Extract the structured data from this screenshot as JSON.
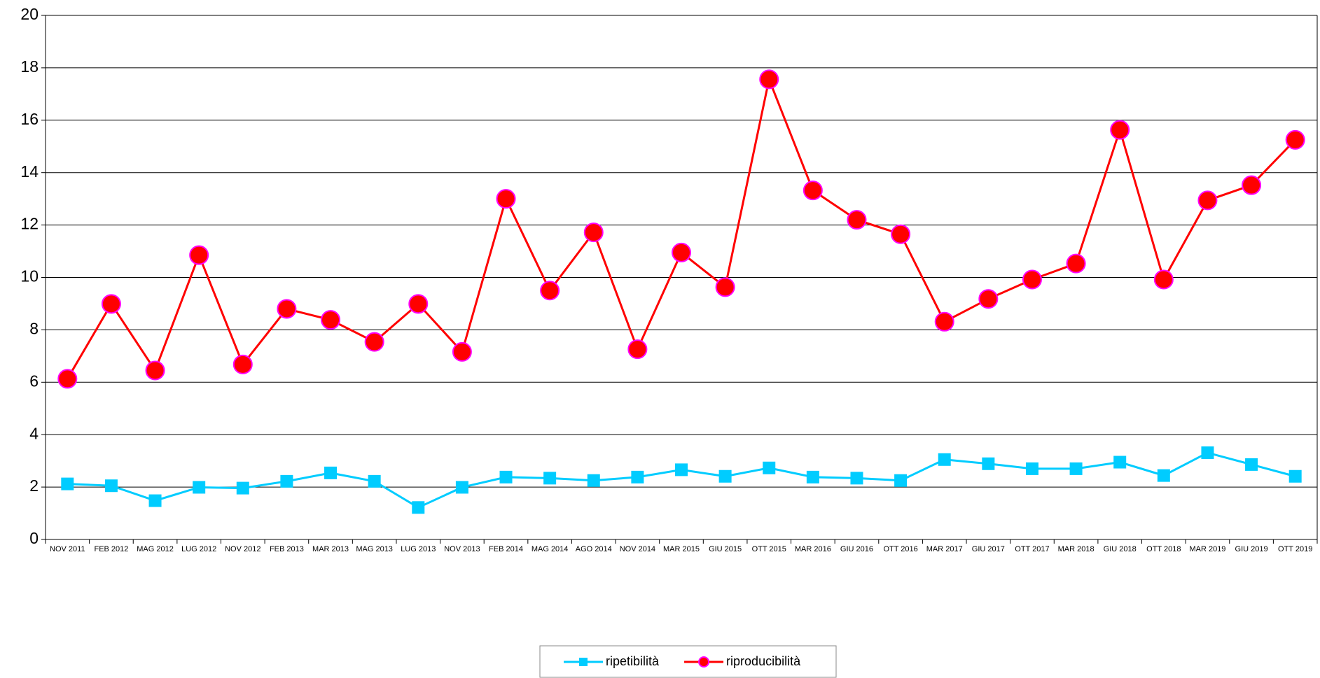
{
  "chart_data": {
    "type": "line",
    "categories": [
      "NOV 2011",
      "FEB 2012",
      "MAG 2012",
      "LUG 2012",
      "NOV 2012",
      "FEB 2013",
      "MAR 2013",
      "MAG 2013",
      "LUG 2013",
      "NOV 2013",
      "FEB 2014",
      "MAG 2014",
      "AGO 2014",
      "NOV 2014",
      "MAR 2015",
      "GIU 2015",
      "OTT 2015",
      "MAR 2016",
      "GIU 2016",
      "OTT 2016",
      "MAR 2017",
      "GIU 2017",
      "OTT 2017",
      "MAR 2018",
      "GIU 2018",
      "OTT 2018",
      "MAR 2019",
      "GIU 2019",
      "OTT 2019"
    ],
    "series": [
      {
        "name": "ripetibilità",
        "color": "#00ccff",
        "marker": "square",
        "values": [
          2.12,
          2.05,
          1.48,
          1.99,
          1.96,
          2.22,
          2.54,
          2.22,
          1.22,
          1.99,
          2.38,
          2.34,
          2.25,
          2.38,
          2.66,
          2.41,
          2.73,
          2.38,
          2.34,
          2.25,
          3.05,
          2.89,
          2.7,
          2.7,
          2.95,
          2.44,
          3.31,
          2.86,
          2.41
        ]
      },
      {
        "name": "riproducibilità",
        "color": "#ff0000",
        "marker": "circle",
        "values": [
          6.13,
          8.99,
          6.45,
          10.85,
          6.68,
          8.8,
          8.38,
          7.54,
          8.99,
          7.16,
          13.0,
          9.5,
          11.72,
          7.26,
          10.95,
          9.63,
          17.56,
          13.32,
          12.2,
          11.65,
          8.31,
          9.18,
          9.92,
          10.53,
          15.63,
          9.92,
          12.94,
          13.52,
          15.25
        ]
      }
    ],
    "ylim": [
      0,
      20
    ],
    "yticks": [
      0,
      2,
      4,
      6,
      8,
      10,
      12,
      14,
      16,
      18,
      20
    ],
    "grid": true,
    "legend": "bottom"
  }
}
